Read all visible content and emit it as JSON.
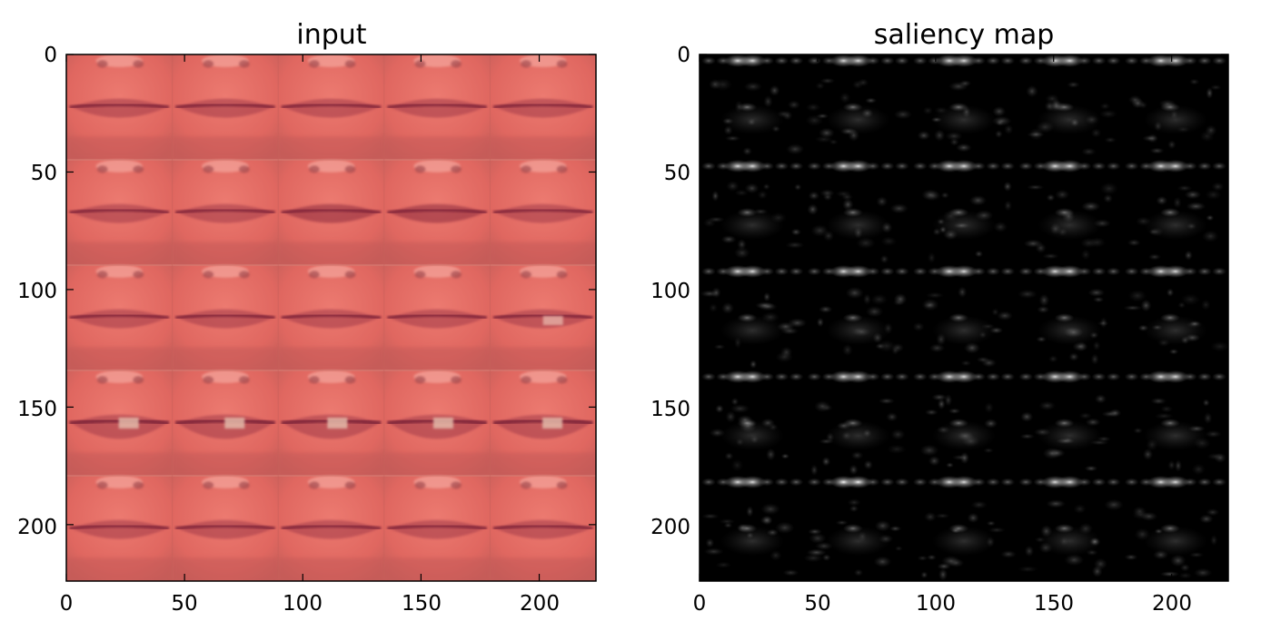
{
  "panels": [
    {
      "title": "input",
      "x_ticks": [
        "0",
        "50",
        "100",
        "150",
        "200"
      ],
      "y_ticks": [
        "0",
        "50",
        "100",
        "150",
        "200"
      ],
      "grid": {
        "rows": 5,
        "cols": 5
      },
      "colors": {
        "skin": "#e56a62",
        "lip": "#a23a4a",
        "shadow": "#c55a58"
      }
    },
    {
      "title": "saliency map",
      "x_ticks": [
        "0",
        "50",
        "100",
        "150",
        "200"
      ],
      "y_ticks": [
        "0",
        "50",
        "100",
        "150",
        "200"
      ],
      "grid": {
        "rows": 5,
        "cols": 5
      },
      "colors": {
        "background": "#000000",
        "highlight": "#ffffff"
      }
    }
  ],
  "axis_range": {
    "x": [
      0,
      224
    ],
    "y": [
      0,
      224
    ]
  },
  "tick_values": [
    0,
    50,
    100,
    150,
    200
  ]
}
